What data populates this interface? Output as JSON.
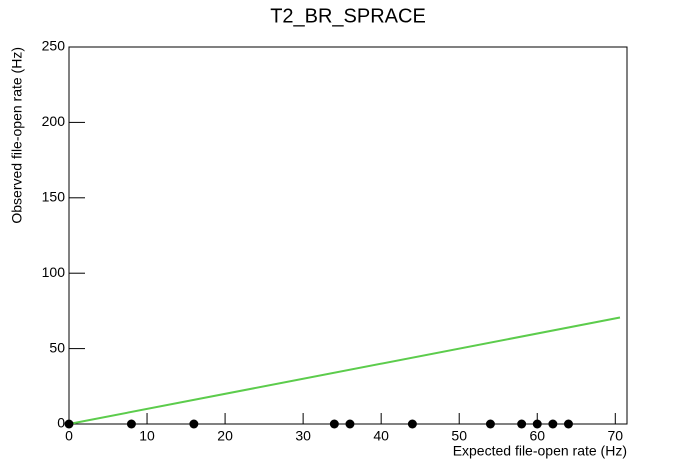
{
  "chart_data": {
    "type": "scatter",
    "title": "T2_BR_SPRACE",
    "x_label": "Expected file-open rate (Hz)",
    "y_label": "Observed file-open rate (Hz)",
    "series": [
      {
        "x": [
          0,
          8,
          16,
          34,
          36,
          44,
          54,
          58,
          60,
          62,
          64
        ],
        "values": [
          0,
          0,
          0,
          0,
          0,
          0,
          0,
          0,
          0,
          0,
          0
        ],
        "color": "#000000"
      }
    ],
    "reference_line": {
      "x": [
        0,
        70.6
      ],
      "values": [
        0,
        70.6
      ],
      "color": "#5ccc4c"
    },
    "xlim": [
      0,
      71.5
    ],
    "xticks": [
      0,
      10,
      20,
      30,
      40,
      50,
      60,
      70
    ],
    "ylim": [
      0,
      250
    ],
    "yticks": [
      0,
      50,
      100,
      150,
      200,
      250
    ]
  }
}
